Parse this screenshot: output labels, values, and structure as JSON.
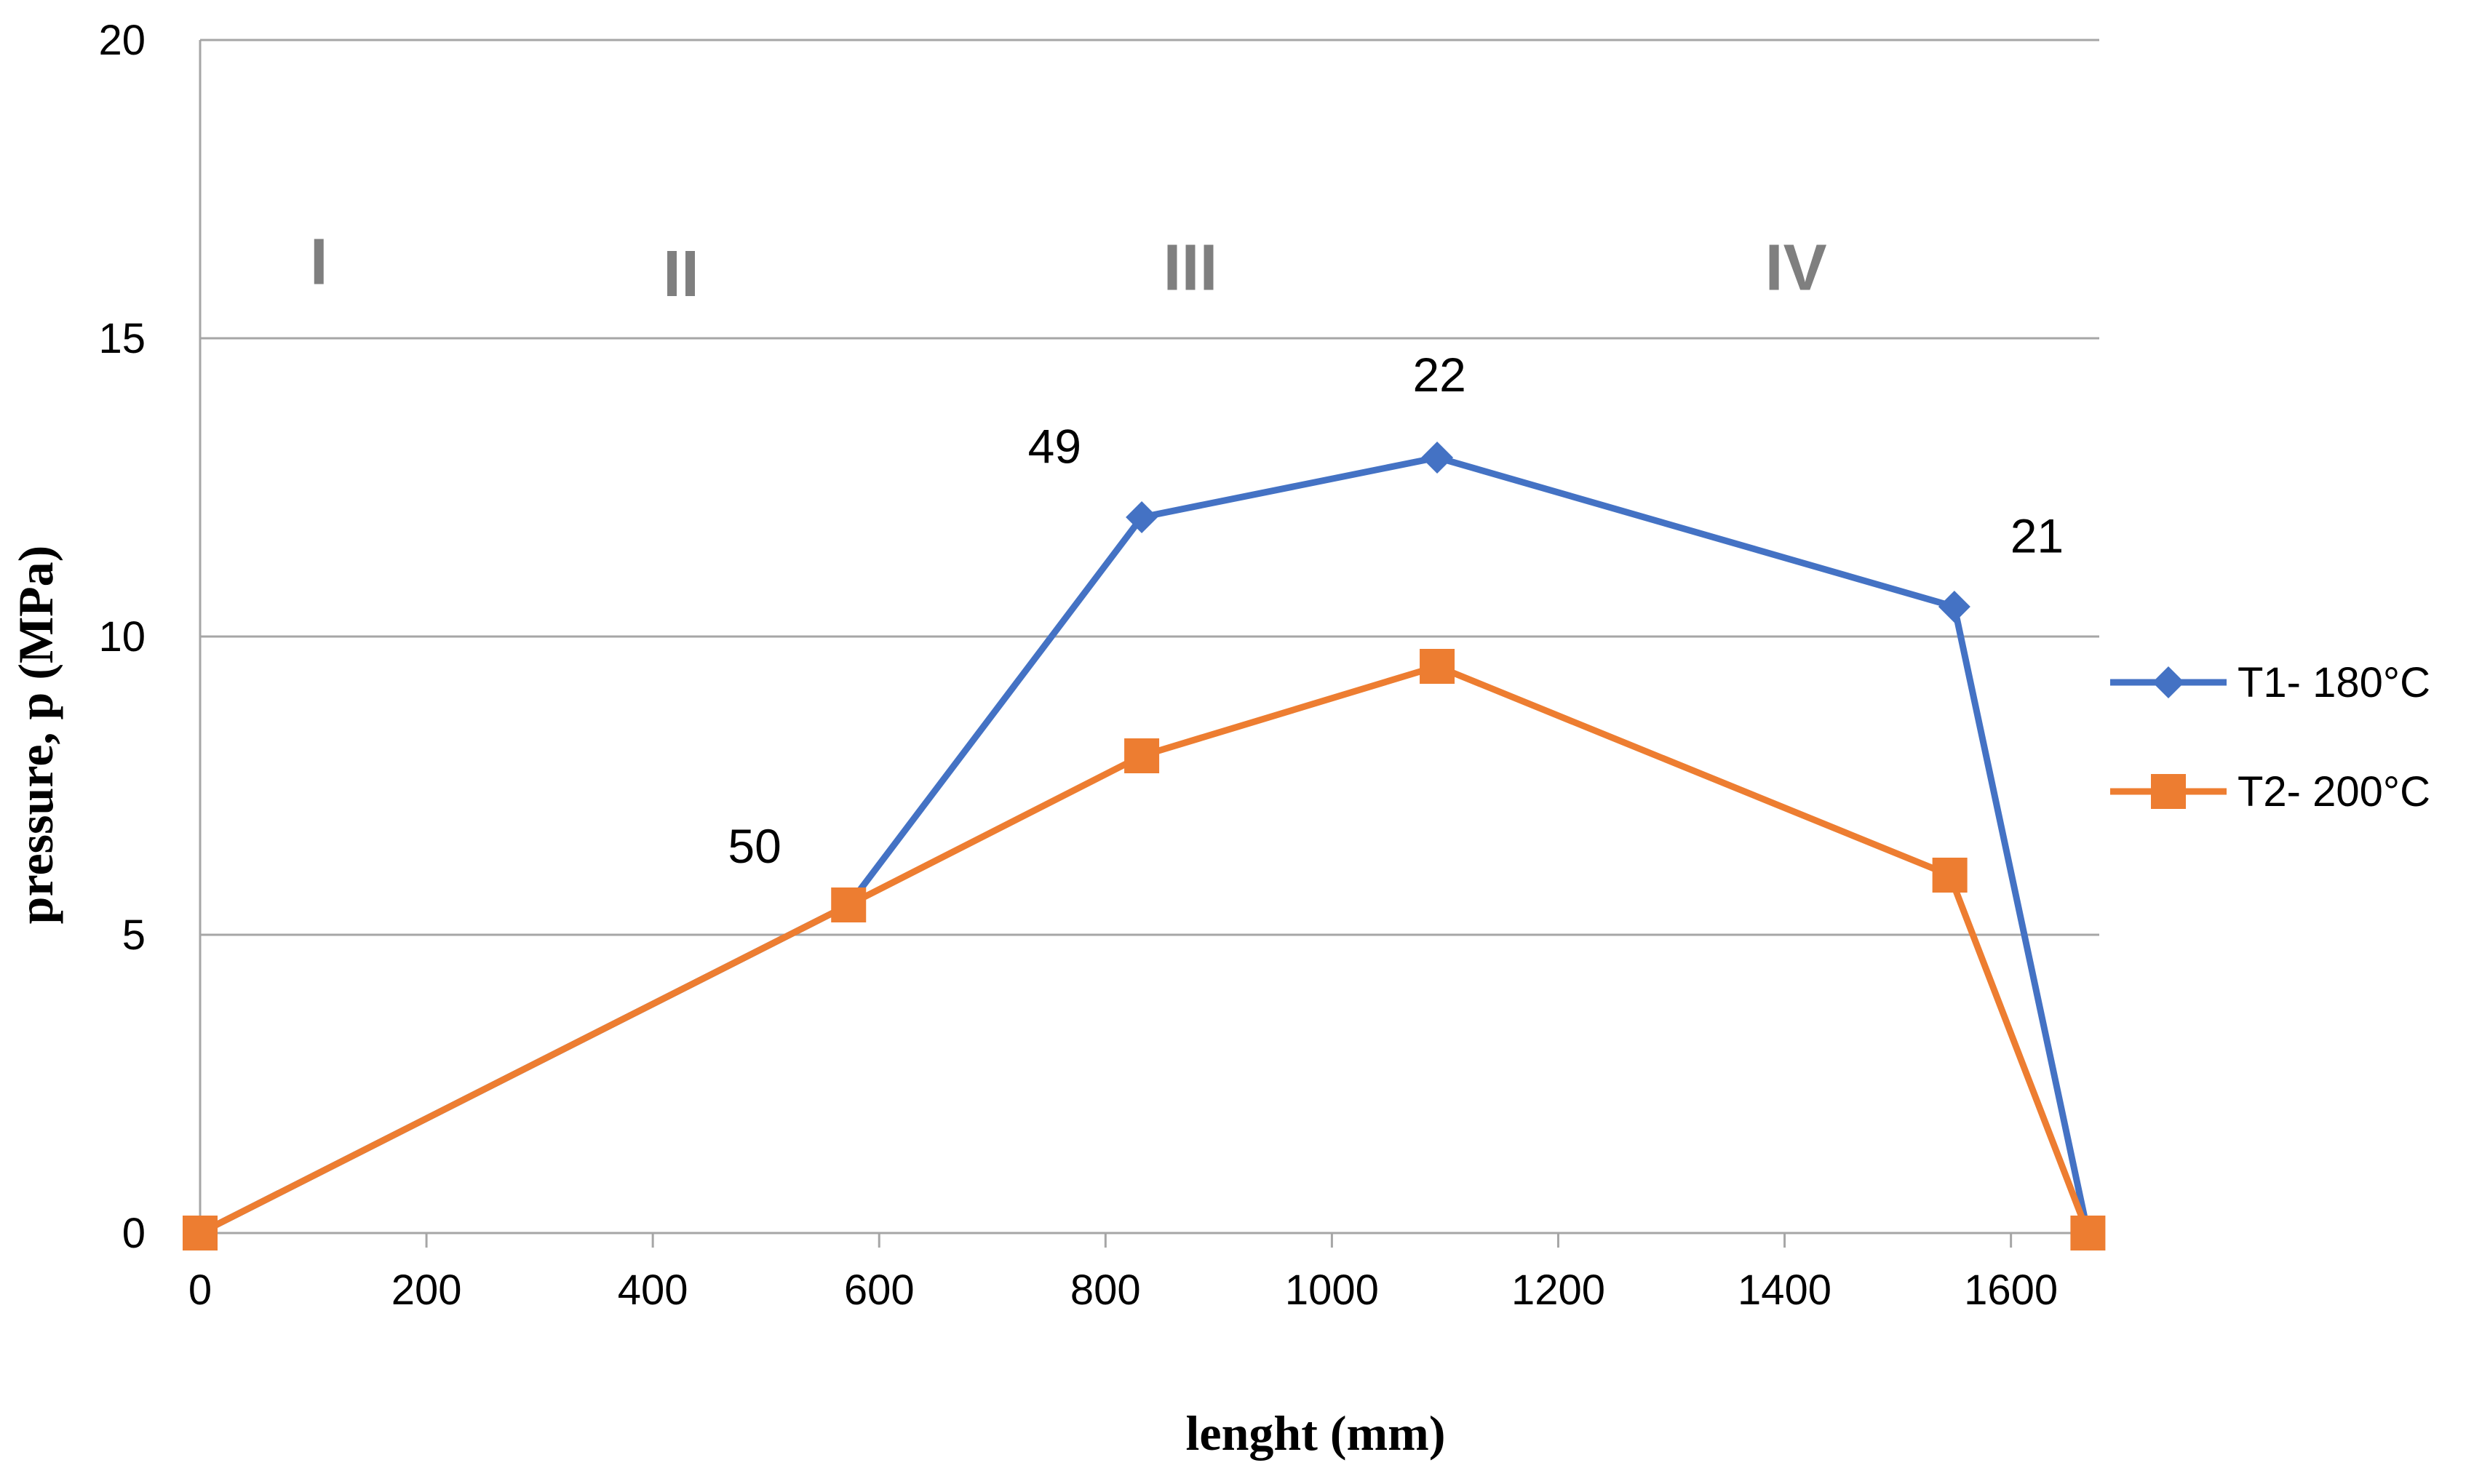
{
  "chart_data": {
    "type": "line",
    "title": "",
    "xlabel": "lenght (mm)",
    "ylabel": "pressure,  p (MPa)",
    "xlim": [
      0,
      1680
    ],
    "ylim": [
      0,
      20
    ],
    "xticks": [
      0,
      200,
      400,
      600,
      800,
      1000,
      1200,
      1400,
      1600
    ],
    "yticks": [
      0,
      5,
      10,
      15,
      20
    ],
    "grid": "horizontal",
    "legend_position": "right",
    "series": [
      {
        "name": "T1- 180°C",
        "color": "#4472c4",
        "marker": "diamond",
        "points": [
          {
            "x": 0,
            "y": 0
          },
          {
            "x": 573,
            "y": 5.5
          },
          {
            "x": 832,
            "y": 12
          },
          {
            "x": 1093,
            "y": 13
          },
          {
            "x": 1550,
            "y": 10.5
          },
          {
            "x": 1668,
            "y": 0
          }
        ]
      },
      {
        "name": "T2- 200°C",
        "color": "#ed7d31",
        "marker": "square",
        "points": [
          {
            "x": 0,
            "y": 0
          },
          {
            "x": 573,
            "y": 5.5
          },
          {
            "x": 832,
            "y": 8
          },
          {
            "x": 1093,
            "y": 9.5
          },
          {
            "x": 1546,
            "y": 6
          },
          {
            "x": 1668,
            "y": 0
          }
        ]
      }
    ],
    "annotations": [
      {
        "text": "50",
        "x": 490,
        "y": 6.5
      },
      {
        "text": "49",
        "x": 755,
        "y": 13.2
      },
      {
        "text": "22",
        "x": 1095,
        "y": 14.4
      },
      {
        "text": "21",
        "x": 1623,
        "y": 11.7
      }
    ],
    "regions": [
      {
        "text": "I",
        "x": 105,
        "y": 16.3
      },
      {
        "text": "II",
        "x": 425,
        "y": 16.1
      },
      {
        "text": "III",
        "x": 875,
        "y": 16.2
      },
      {
        "text": "IV",
        "x": 1410,
        "y": 16.2
      }
    ]
  }
}
